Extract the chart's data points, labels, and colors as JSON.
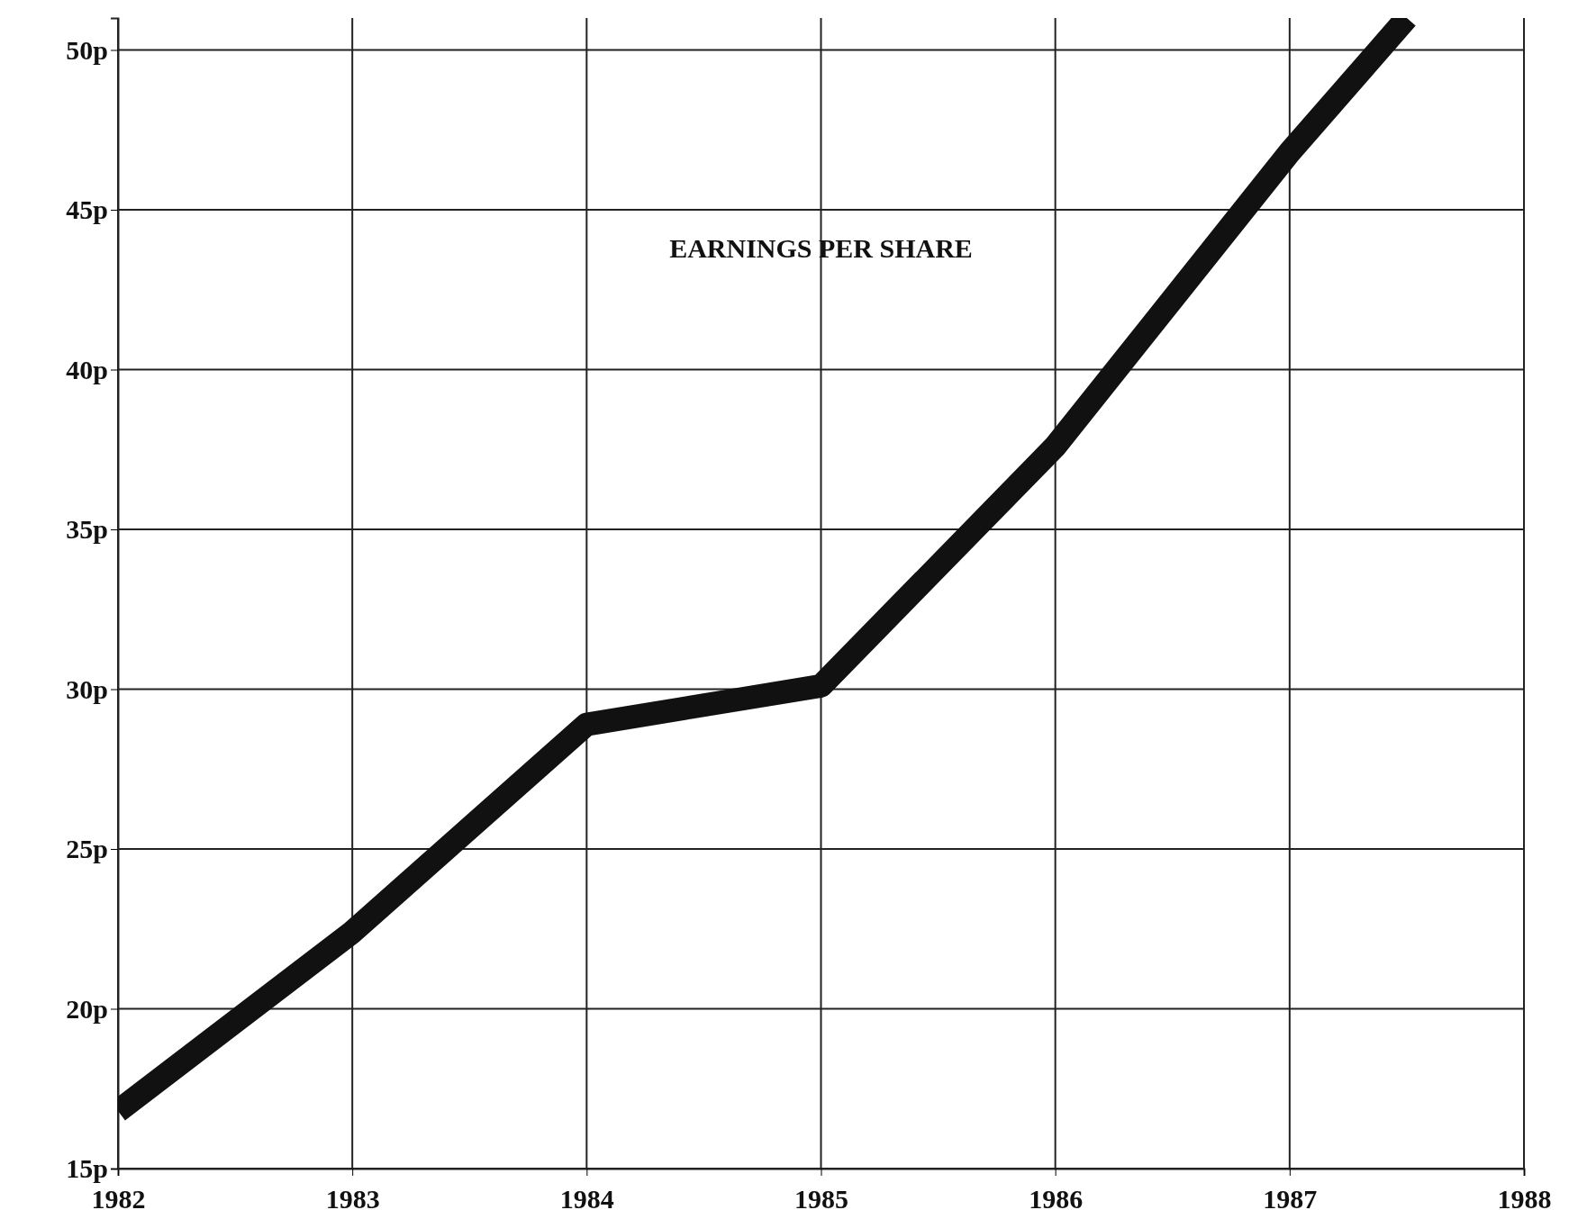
{
  "chart_data": {
    "type": "line",
    "title": "EARNINGS PER SHARE",
    "x": [
      1982,
      1983,
      1984,
      1985,
      1986,
      1987,
      1987.5
    ],
    "series": [
      {
        "color": "#111111",
        "values": [
          16.8,
          22.4,
          28.9,
          30.1,
          37.6,
          46.8,
          51
        ]
      }
    ],
    "xlim": [
      1982,
      1988
    ],
    "xticks": [
      1982,
      1983,
      1984,
      1985,
      1986,
      1987,
      1988
    ],
    "ylim": [
      15,
      51
    ],
    "yticks": [
      {
        "value": 15,
        "label": "15p"
      },
      {
        "value": 20,
        "label": "20p"
      },
      {
        "value": 25,
        "label": "25p"
      },
      {
        "value": 30,
        "label": "30p"
      },
      {
        "value": 35,
        "label": "35p"
      },
      {
        "value": 40,
        "label": "40p"
      },
      {
        "value": 45,
        "label": "45p"
      },
      {
        "value": 50,
        "label": "50p"
      }
    ],
    "grid": true,
    "marker": "none",
    "line_style": "solid"
  }
}
